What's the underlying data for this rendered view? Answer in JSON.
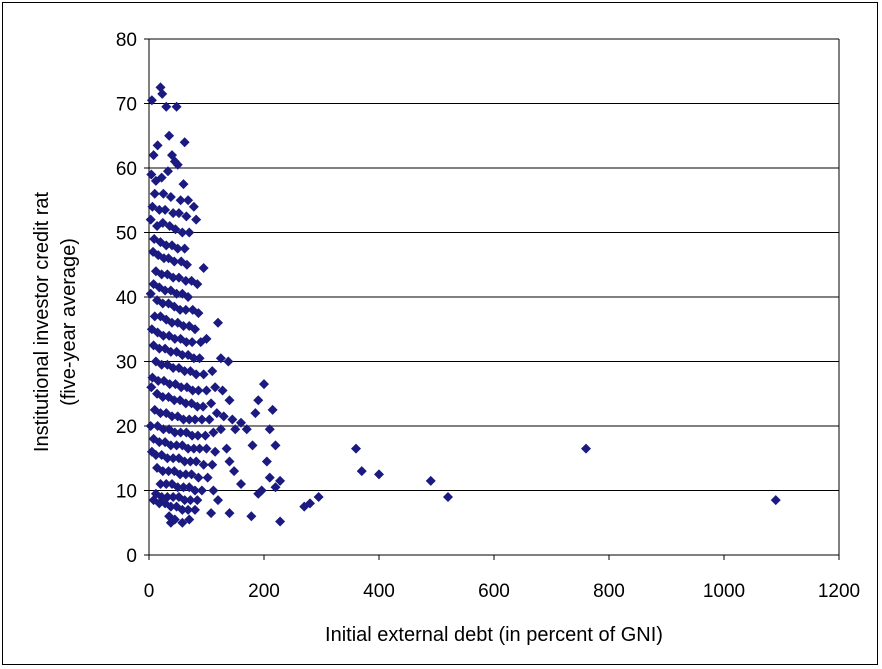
{
  "chart_data": {
    "type": "scatter",
    "title": "",
    "xlabel": "Initial external debt (in percent of GNI)",
    "ylabel_line1": "Institutional investor credit rat",
    "ylabel_line2": "(five-year average)",
    "xlim": [
      0,
      1200
    ],
    "ylim": [
      0,
      80
    ],
    "xticks": [
      0,
      200,
      400,
      600,
      800,
      1000,
      1200
    ],
    "yticks": [
      0,
      10,
      20,
      30,
      40,
      50,
      60,
      70,
      80
    ],
    "grid": "horizontal",
    "legend": "none",
    "marker": "diamond",
    "colors": {
      "marker": "#1a1a80",
      "grid": "#000000",
      "axis": "#000000"
    },
    "points": [
      [
        20,
        72.5
      ],
      [
        23,
        71.5
      ],
      [
        5,
        70.5
      ],
      [
        30,
        69.5
      ],
      [
        48,
        69.5
      ],
      [
        15,
        63.5
      ],
      [
        8,
        62
      ],
      [
        62,
        64
      ],
      [
        35,
        65
      ],
      [
        40,
        62
      ],
      [
        45,
        61
      ],
      [
        50,
        60.5
      ],
      [
        4,
        59
      ],
      [
        12,
        58
      ],
      [
        22,
        58.5
      ],
      [
        33,
        59.5
      ],
      [
        60,
        57.5
      ],
      [
        10,
        56
      ],
      [
        25,
        56
      ],
      [
        38,
        55.5
      ],
      [
        55,
        55
      ],
      [
        68,
        55
      ],
      [
        6,
        54
      ],
      [
        18,
        53.5
      ],
      [
        28,
        53.5
      ],
      [
        42,
        53
      ],
      [
        52,
        53
      ],
      [
        65,
        52.5
      ],
      [
        78,
        54
      ],
      [
        82,
        52
      ],
      [
        3,
        52
      ],
      [
        14,
        51
      ],
      [
        24,
        51.5
      ],
      [
        36,
        51
      ],
      [
        46,
        50.5
      ],
      [
        58,
        50
      ],
      [
        70,
        50
      ],
      [
        9,
        49
      ],
      [
        20,
        48.5
      ],
      [
        30,
        48
      ],
      [
        40,
        48
      ],
      [
        50,
        47.5
      ],
      [
        62,
        47.5
      ],
      [
        7,
        47
      ],
      [
        16,
        46.5
      ],
      [
        26,
        46
      ],
      [
        34,
        46
      ],
      [
        44,
        45.5
      ],
      [
        56,
        45.5
      ],
      [
        66,
        45
      ],
      [
        95,
        44.5
      ],
      [
        12,
        44
      ],
      [
        22,
        43.5
      ],
      [
        32,
        43.5
      ],
      [
        42,
        43
      ],
      [
        52,
        43
      ],
      [
        64,
        42.5
      ],
      [
        74,
        42.5
      ],
      [
        84,
        42
      ],
      [
        8,
        42
      ],
      [
        18,
        41.5
      ],
      [
        28,
        41
      ],
      [
        38,
        41
      ],
      [
        48,
        40.5
      ],
      [
        58,
        40.5
      ],
      [
        68,
        40
      ],
      [
        3,
        40.5
      ],
      [
        14,
        39.5
      ],
      [
        24,
        39
      ],
      [
        34,
        39
      ],
      [
        44,
        38.5
      ],
      [
        54,
        38
      ],
      [
        64,
        38
      ],
      [
        76,
        38
      ],
      [
        86,
        37.5
      ],
      [
        10,
        37
      ],
      [
        20,
        37
      ],
      [
        30,
        36.5
      ],
      [
        40,
        36
      ],
      [
        50,
        36
      ],
      [
        60,
        35.5
      ],
      [
        70,
        35.5
      ],
      [
        80,
        35
      ],
      [
        120,
        36
      ],
      [
        5,
        35
      ],
      [
        15,
        34.5
      ],
      [
        25,
        34
      ],
      [
        35,
        34
      ],
      [
        45,
        33.5
      ],
      [
        55,
        33.5
      ],
      [
        65,
        33
      ],
      [
        75,
        33
      ],
      [
        90,
        33
      ],
      [
        100,
        33.5
      ],
      [
        8,
        32.5
      ],
      [
        18,
        32
      ],
      [
        28,
        32
      ],
      [
        38,
        31.5
      ],
      [
        48,
        31.5
      ],
      [
        58,
        31
      ],
      [
        68,
        31
      ],
      [
        78,
        30.5
      ],
      [
        88,
        30.5
      ],
      [
        125,
        30.5
      ],
      [
        138,
        30
      ],
      [
        12,
        30
      ],
      [
        22,
        29.5
      ],
      [
        32,
        29.5
      ],
      [
        42,
        29
      ],
      [
        52,
        29
      ],
      [
        62,
        28.5
      ],
      [
        72,
        28.5
      ],
      [
        82,
        28
      ],
      [
        95,
        28
      ],
      [
        110,
        28.5
      ],
      [
        6,
        27.5
      ],
      [
        16,
        27
      ],
      [
        26,
        27
      ],
      [
        36,
        26.5
      ],
      [
        46,
        26.5
      ],
      [
        56,
        26
      ],
      [
        66,
        26
      ],
      [
        76,
        25.5
      ],
      [
        86,
        25.5
      ],
      [
        100,
        25.5
      ],
      [
        115,
        26
      ],
      [
        128,
        25.5
      ],
      [
        200,
        26.5
      ],
      [
        4,
        26
      ],
      [
        14,
        25
      ],
      [
        24,
        24.5
      ],
      [
        34,
        24.5
      ],
      [
        44,
        24
      ],
      [
        54,
        24
      ],
      [
        64,
        23.5
      ],
      [
        74,
        23.5
      ],
      [
        84,
        23
      ],
      [
        94,
        23
      ],
      [
        108,
        23.5
      ],
      [
        140,
        24
      ],
      [
        190,
        24
      ],
      [
        10,
        22.5
      ],
      [
        20,
        22
      ],
      [
        30,
        22
      ],
      [
        40,
        21.5
      ],
      [
        50,
        21.5
      ],
      [
        60,
        21
      ],
      [
        70,
        21
      ],
      [
        80,
        21
      ],
      [
        92,
        21
      ],
      [
        105,
        21
      ],
      [
        118,
        22
      ],
      [
        130,
        21.5
      ],
      [
        145,
        21
      ],
      [
        160,
        20.5
      ],
      [
        185,
        22
      ],
      [
        215,
        22.5
      ],
      [
        3,
        20
      ],
      [
        15,
        20
      ],
      [
        25,
        19.5
      ],
      [
        35,
        19.5
      ],
      [
        45,
        19
      ],
      [
        55,
        19
      ],
      [
        65,
        19
      ],
      [
        75,
        18.5
      ],
      [
        85,
        18.5
      ],
      [
        98,
        18.5
      ],
      [
        112,
        19
      ],
      [
        125,
        19.5
      ],
      [
        150,
        19.5
      ],
      [
        170,
        19.5
      ],
      [
        210,
        19.5
      ],
      [
        8,
        18
      ],
      [
        18,
        17.5
      ],
      [
        28,
        17.5
      ],
      [
        38,
        17
      ],
      [
        48,
        17
      ],
      [
        58,
        17
      ],
      [
        68,
        16.5
      ],
      [
        78,
        16.5
      ],
      [
        88,
        16.5
      ],
      [
        100,
        16.5
      ],
      [
        115,
        16
      ],
      [
        135,
        16.5
      ],
      [
        180,
        17
      ],
      [
        220,
        17
      ],
      [
        360,
        16.5
      ],
      [
        760,
        16.5
      ],
      [
        5,
        16
      ],
      [
        12,
        15.5
      ],
      [
        22,
        15.5
      ],
      [
        32,
        15
      ],
      [
        42,
        15
      ],
      [
        52,
        15
      ],
      [
        62,
        14.5
      ],
      [
        72,
        14.5
      ],
      [
        82,
        14.5
      ],
      [
        95,
        14
      ],
      [
        110,
        14
      ],
      [
        140,
        14.5
      ],
      [
        205,
        14.5
      ],
      [
        14,
        13.5
      ],
      [
        24,
        13
      ],
      [
        34,
        13
      ],
      [
        44,
        13
      ],
      [
        54,
        12.5
      ],
      [
        64,
        12.5
      ],
      [
        74,
        12.5
      ],
      [
        86,
        12
      ],
      [
        102,
        12
      ],
      [
        148,
        13
      ],
      [
        210,
        12
      ],
      [
        370,
        13
      ],
      [
        228,
        11.5
      ],
      [
        400,
        12.5
      ],
      [
        20,
        11
      ],
      [
        30,
        11
      ],
      [
        40,
        11
      ],
      [
        50,
        10.5
      ],
      [
        60,
        10.5
      ],
      [
        70,
        10.5
      ],
      [
        80,
        10
      ],
      [
        92,
        10
      ],
      [
        112,
        10
      ],
      [
        160,
        11
      ],
      [
        196,
        10
      ],
      [
        220,
        10.5
      ],
      [
        490,
        11.5
      ],
      [
        12,
        9.5
      ],
      [
        22,
        9
      ],
      [
        32,
        9
      ],
      [
        42,
        9
      ],
      [
        52,
        9
      ],
      [
        62,
        8.5
      ],
      [
        72,
        8.5
      ],
      [
        84,
        8.5
      ],
      [
        120,
        8.5
      ],
      [
        190,
        9.5
      ],
      [
        295,
        9
      ],
      [
        520,
        9
      ],
      [
        1090,
        8.5
      ],
      [
        8,
        8.5
      ],
      [
        18,
        8
      ],
      [
        28,
        8
      ],
      [
        38,
        7.5
      ],
      [
        48,
        7.5
      ],
      [
        58,
        7
      ],
      [
        68,
        7
      ],
      [
        80,
        7
      ],
      [
        108,
        6.5
      ],
      [
        140,
        6.5
      ],
      [
        178,
        6
      ],
      [
        270,
        7.5
      ],
      [
        280,
        8
      ],
      [
        35,
        6
      ],
      [
        45,
        5.5
      ],
      [
        58,
        5
      ],
      [
        70,
        5.5
      ],
      [
        228,
        5.2
      ],
      [
        38,
        5
      ]
    ]
  }
}
